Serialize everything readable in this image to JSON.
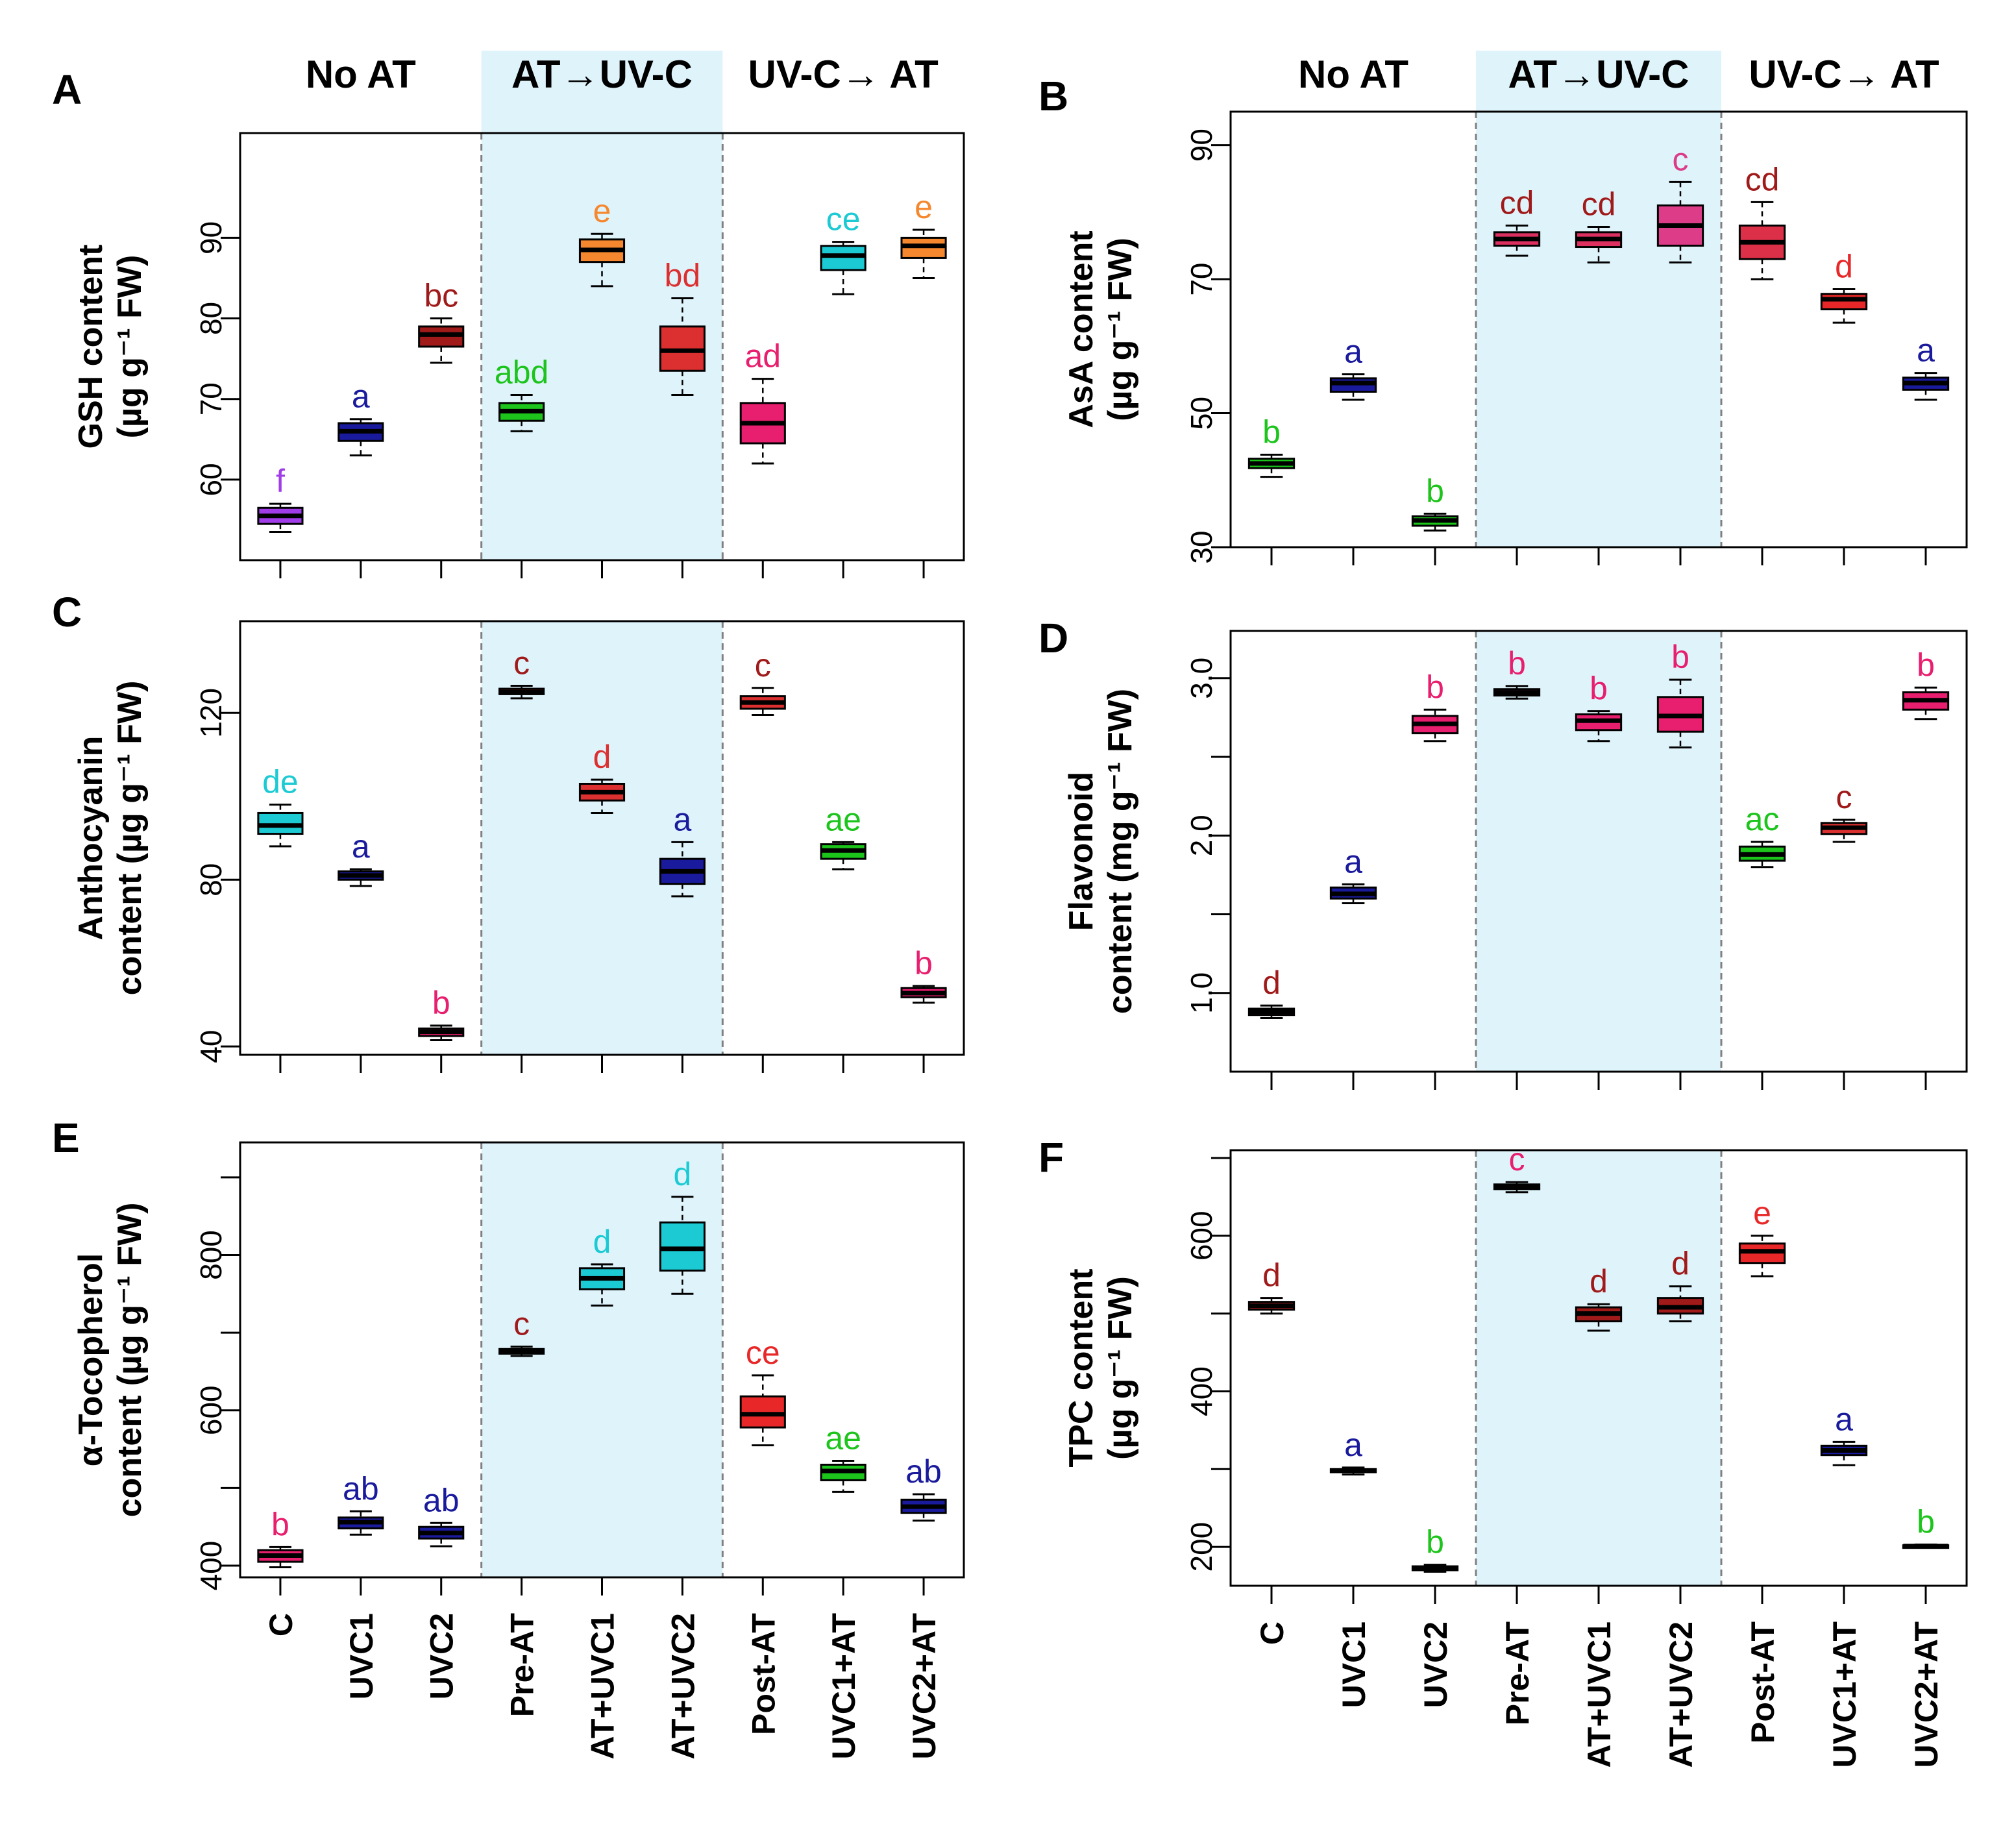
{
  "chart_data": [
    {
      "type": "box",
      "panel": "A",
      "ylabel_line1": "GSH content",
      "ylabel_line2": "(µg g⁻¹ FW)",
      "ylim": [
        50,
        103
      ],
      "yticks": [
        60,
        70,
        80,
        90
      ],
      "groups": [
        "No AT",
        "AT→UV-C",
        "UV-C→ AT"
      ],
      "categories": [
        "C",
        "UVC1",
        "UVC2",
        "Pre-AT",
        "AT+UVC1",
        "AT+UVC2",
        "Post-AT",
        "UVC1+AT",
        "UVC2+AT"
      ],
      "boxes": [
        {
          "min": 53.5,
          "q1": 54.5,
          "med": 55.5,
          "q3": 56.5,
          "max": 57.0,
          "fill": "#a03ce8",
          "letter": "f",
          "letter_color": "#a03ce8"
        },
        {
          "min": 63.0,
          "q1": 64.8,
          "med": 66.0,
          "q3": 67.0,
          "max": 67.5,
          "fill": "#1a1a9c",
          "letter": "a",
          "letter_color": "#1a1a9c"
        },
        {
          "min": 74.5,
          "q1": 76.5,
          "med": 78.0,
          "q3": 79.0,
          "max": 80.0,
          "fill": "#a01a1a",
          "letter": "bc",
          "letter_color": "#a01a1a"
        },
        {
          "min": 66.0,
          "q1": 67.3,
          "med": 68.5,
          "q3": 69.5,
          "max": 70.5,
          "fill": "#1cc41c",
          "letter": "abd",
          "letter_color": "#1cc41c"
        },
        {
          "min": 84.0,
          "q1": 87.0,
          "med": 88.5,
          "q3": 89.8,
          "max": 90.5,
          "fill": "#f5882e",
          "letter": "e",
          "letter_color": "#f5882e"
        },
        {
          "min": 70.5,
          "q1": 73.5,
          "med": 76.0,
          "q3": 79.0,
          "max": 82.5,
          "fill": "#dc3030",
          "letter": "bd",
          "letter_color": "#dc3030"
        },
        {
          "min": 62.0,
          "q1": 64.5,
          "med": 67.0,
          "q3": 69.5,
          "max": 72.5,
          "fill": "#e81e6e",
          "letter": "ad",
          "letter_color": "#e81e6e"
        },
        {
          "min": 83.0,
          "q1": 86.0,
          "med": 87.8,
          "q3": 89.0,
          "max": 89.5,
          "fill": "#1ccad3",
          "letter": "ce",
          "letter_color": "#1ccad3"
        },
        {
          "min": 85.0,
          "q1": 87.5,
          "med": 89.0,
          "q3": 90.0,
          "max": 91.0,
          "fill": "#f5882e",
          "letter": "e",
          "letter_color": "#f5882e"
        }
      ]
    },
    {
      "type": "box",
      "panel": "B",
      "ylabel_line1": "AsA content",
      "ylabel_line2": "(µg g⁻¹ FW)",
      "ylim": [
        30,
        95
      ],
      "yticks": [
        30,
        50,
        70,
        90
      ],
      "groups": [
        "No AT",
        "AT→UV-C",
        "UV-C→ AT"
      ],
      "categories": [
        "C",
        "UVC1",
        "UVC2",
        "Pre-AT",
        "AT+UVC1",
        "AT+UVC2",
        "Post-AT",
        "UVC1+AT",
        "UVC2+AT"
      ],
      "boxes": [
        {
          "min": 40.5,
          "q1": 41.8,
          "med": 42.5,
          "q3": 43.2,
          "max": 43.8,
          "fill": "#1cc41c",
          "letter": "b",
          "letter_color": "#1cc41c"
        },
        {
          "min": 52.0,
          "q1": 53.2,
          "med": 54.5,
          "q3": 55.2,
          "max": 55.8,
          "fill": "#1a1a9c",
          "letter": "a",
          "letter_color": "#1a1a9c"
        },
        {
          "min": 32.5,
          "q1": 33.2,
          "med": 34.0,
          "q3": 34.6,
          "max": 35.0,
          "fill": "#1cc41c",
          "letter": "b",
          "letter_color": "#1cc41c"
        },
        {
          "min": 73.5,
          "q1": 75.0,
          "med": 76.0,
          "q3": 77.0,
          "max": 78.0,
          "fill": "#dc3060",
          "letter": "cd",
          "letter_color": "#a01a1a"
        },
        {
          "min": 72.5,
          "q1": 74.8,
          "med": 76.0,
          "q3": 77.0,
          "max": 77.8,
          "fill": "#dc3060",
          "letter": "cd",
          "letter_color": "#a01a1a"
        },
        {
          "min": 72.5,
          "q1": 75.0,
          "med": 78.0,
          "q3": 81.0,
          "max": 84.5,
          "fill": "#dc3c88",
          "letter": "c",
          "letter_color": "#dc3c88"
        },
        {
          "min": 70.0,
          "q1": 73.0,
          "med": 75.5,
          "q3": 78.0,
          "max": 81.5,
          "fill": "#dc3048",
          "letter": "cd",
          "letter_color": "#a01a1a"
        },
        {
          "min": 63.5,
          "q1": 65.5,
          "med": 67.0,
          "q3": 67.8,
          "max": 68.5,
          "fill": "#e82828",
          "letter": "d",
          "letter_color": "#e82828"
        },
        {
          "min": 52.0,
          "q1": 53.5,
          "med": 54.5,
          "q3": 55.3,
          "max": 56.0,
          "fill": "#1a1a9c",
          "letter": "a",
          "letter_color": "#1a1a9c"
        }
      ]
    },
    {
      "type": "box",
      "panel": "C",
      "ylabel_line1": "Anthocyanin",
      "ylabel_line2": "content (µg g⁻¹ FW)",
      "ylim": [
        38,
        142
      ],
      "yticks": [
        40,
        80,
        120
      ],
      "groups": [
        "No AT",
        "AT→UV-C",
        "UV-C→ AT"
      ],
      "categories": [
        "C",
        "UVC1",
        "UVC2",
        "Pre-AT",
        "AT+UVC1",
        "AT+UVC2",
        "Post-AT",
        "UVC1+AT",
        "UVC2+AT"
      ],
      "boxes": [
        {
          "min": 88.0,
          "q1": 91.0,
          "med": 93.0,
          "q3": 96.0,
          "max": 98.0,
          "fill": "#1ccad3",
          "letter": "de",
          "letter_color": "#1ccad3"
        },
        {
          "min": 78.5,
          "q1": 80.0,
          "med": 81.0,
          "q3": 82.0,
          "max": 82.5,
          "fill": "#1a1a9c",
          "letter": "a",
          "letter_color": "#1a1a9c"
        },
        {
          "min": 41.5,
          "q1": 42.5,
          "med": 43.5,
          "q3": 44.3,
          "max": 45.0,
          "fill": "#e81e6e",
          "letter": "b",
          "letter_color": "#e81e6e"
        },
        {
          "min": 123.5,
          "q1": 124.5,
          "med": 125.0,
          "q3": 125.8,
          "max": 126.5,
          "fill": "#a01a1a",
          "letter": "c",
          "letter_color": "#a01a1a"
        },
        {
          "min": 96.0,
          "q1": 99.0,
          "med": 101.0,
          "q3": 103.0,
          "max": 104.0,
          "fill": "#dc3030",
          "letter": "d",
          "letter_color": "#dc3030"
        },
        {
          "min": 76.0,
          "q1": 79.0,
          "med": 82.0,
          "q3": 85.0,
          "max": 89.0,
          "fill": "#1a1a9c",
          "letter": "a",
          "letter_color": "#1a1a9c"
        },
        {
          "min": 119.5,
          "q1": 121.0,
          "med": 122.5,
          "q3": 124.0,
          "max": 126.0,
          "fill": "#dc3030",
          "letter": "c",
          "letter_color": "#a01a1a"
        },
        {
          "min": 82.5,
          "q1": 85.0,
          "med": 87.0,
          "q3": 88.5,
          "max": 89.0,
          "fill": "#1cc41c",
          "letter": "ae",
          "letter_color": "#1cc41c"
        },
        {
          "min": 50.5,
          "q1": 51.8,
          "med": 52.8,
          "q3": 54.0,
          "max": 54.5,
          "fill": "#e81e6e",
          "letter": "b",
          "letter_color": "#e81e6e"
        }
      ]
    },
    {
      "type": "box",
      "panel": "D",
      "ylabel_line1": "Flavonoid",
      "ylabel_line2": "content (mg g⁻¹ FW)",
      "ylim": [
        0.5,
        3.3
      ],
      "yticks": [
        1.0,
        1.5,
        2.0,
        2.5,
        3.0
      ],
      "ytick_labels": [
        "1.0",
        "",
        "2.0",
        "",
        "3.0"
      ],
      "groups": [
        "No AT",
        "AT→UV-C",
        "UV-C→ AT"
      ],
      "categories": [
        "C",
        "UVC1",
        "UVC2",
        "Pre-AT",
        "AT+UVC1",
        "AT+UVC2",
        "Post-AT",
        "UVC1+AT",
        "UVC2+AT"
      ],
      "boxes": [
        {
          "min": 0.84,
          "q1": 0.86,
          "med": 0.88,
          "q3": 0.9,
          "max": 0.92,
          "fill": "#e82828",
          "letter": "d",
          "letter_color": "#a01a1a"
        },
        {
          "min": 1.57,
          "q1": 1.6,
          "med": 1.63,
          "q3": 1.67,
          "max": 1.69,
          "fill": "#1a1a9c",
          "letter": "a",
          "letter_color": "#1a1a9c"
        },
        {
          "min": 2.6,
          "q1": 2.65,
          "med": 2.71,
          "q3": 2.76,
          "max": 2.8,
          "fill": "#e81e6e",
          "letter": "b",
          "letter_color": "#e81e6e"
        },
        {
          "min": 2.87,
          "q1": 2.89,
          "med": 2.91,
          "q3": 2.93,
          "max": 2.95,
          "fill": "#e81e6e",
          "letter": "b",
          "letter_color": "#e81e6e"
        },
        {
          "min": 2.6,
          "q1": 2.67,
          "med": 2.73,
          "q3": 2.77,
          "max": 2.79,
          "fill": "#e81e6e",
          "letter": "b",
          "letter_color": "#e81e6e"
        },
        {
          "min": 2.56,
          "q1": 2.66,
          "med": 2.76,
          "q3": 2.88,
          "max": 2.99,
          "fill": "#e81e6e",
          "letter": "b",
          "letter_color": "#e81e6e"
        },
        {
          "min": 1.8,
          "q1": 1.84,
          "med": 1.88,
          "q3": 1.93,
          "max": 1.96,
          "fill": "#1cc41c",
          "letter": "ac",
          "letter_color": "#1cc41c"
        },
        {
          "min": 1.96,
          "q1": 2.01,
          "med": 2.05,
          "q3": 2.08,
          "max": 2.1,
          "fill": "#dc3030",
          "letter": "c",
          "letter_color": "#a01a1a"
        },
        {
          "min": 2.74,
          "q1": 2.8,
          "med": 2.86,
          "q3": 2.91,
          "max": 2.94,
          "fill": "#e81e6e",
          "letter": "b",
          "letter_color": "#e81e6e"
        }
      ]
    },
    {
      "type": "box",
      "panel": "E",
      "ylabel_line1": "α-Tocopherol",
      "ylabel_line2": "content (µg g⁻¹ FW)",
      "ylim": [
        385,
        945
      ],
      "yticks": [
        400,
        500,
        600,
        700,
        800,
        900
      ],
      "ytick_labels": [
        "400",
        "",
        "600",
        "",
        "800",
        ""
      ],
      "groups": [
        "No AT",
        "AT→UV-C",
        "UV-C→ AT"
      ],
      "categories": [
        "C",
        "UVC1",
        "UVC2",
        "Pre-AT",
        "AT+UVC1",
        "AT+UVC2",
        "Post-AT",
        "UVC1+AT",
        "UVC2+AT"
      ],
      "boxes": [
        {
          "min": 398,
          "q1": 405,
          "med": 413,
          "q3": 420,
          "max": 424,
          "fill": "#e81e6e",
          "letter": "b",
          "letter_color": "#e81e6e"
        },
        {
          "min": 440,
          "q1": 448,
          "med": 456,
          "q3": 462,
          "max": 470,
          "fill": "#1a1a9c",
          "letter": "ab",
          "letter_color": "#1a1a9c"
        },
        {
          "min": 425,
          "q1": 435,
          "med": 442,
          "q3": 450,
          "max": 455,
          "fill": "#1a1a9c",
          "letter": "ab",
          "letter_color": "#1a1a9c"
        },
        {
          "min": 670,
          "q1": 673,
          "med": 676,
          "q3": 679,
          "max": 682,
          "fill": "#1a1a1a",
          "letter": "c",
          "letter_color": "#a01a1a"
        },
        {
          "min": 735,
          "q1": 756,
          "med": 770,
          "q3": 783,
          "max": 788,
          "fill": "#1ccad3",
          "letter": "d",
          "letter_color": "#1ccad3"
        },
        {
          "min": 750,
          "q1": 780,
          "med": 808,
          "q3": 842,
          "max": 875,
          "fill": "#1ccad3",
          "letter": "d",
          "letter_color": "#1ccad3"
        },
        {
          "min": 555,
          "q1": 578,
          "med": 595,
          "q3": 618,
          "max": 645,
          "fill": "#e82828",
          "letter": "ce",
          "letter_color": "#e82828"
        },
        {
          "min": 495,
          "q1": 510,
          "med": 522,
          "q3": 530,
          "max": 535,
          "fill": "#1cc41c",
          "letter": "ae",
          "letter_color": "#1cc41c"
        },
        {
          "min": 458,
          "q1": 468,
          "med": 476,
          "q3": 485,
          "max": 492,
          "fill": "#1a1a9c",
          "letter": "ab",
          "letter_color": "#1a1a9c"
        }
      ]
    },
    {
      "type": "box",
      "panel": "F",
      "ylabel_line1": "TPC content",
      "ylabel_line2": "(µg g⁻¹ FW)",
      "ylim": [
        150,
        710
      ],
      "yticks": [
        200,
        300,
        400,
        500,
        600,
        700
      ],
      "ytick_labels": [
        "200",
        "",
        "400",
        "",
        "600",
        ""
      ],
      "groups": [
        "No AT",
        "AT→UV-C",
        "UV-C→ AT"
      ],
      "categories": [
        "C",
        "UVC1",
        "UVC2",
        "Pre-AT",
        "AT+UVC1",
        "AT+UVC2",
        "Post-AT",
        "UVC1+AT",
        "UVC2+AT"
      ],
      "boxes": [
        {
          "min": 500,
          "q1": 505,
          "med": 510,
          "q3": 515,
          "max": 520,
          "fill": "#a01a1a",
          "letter": "d",
          "letter_color": "#a01a1a"
        },
        {
          "min": 293,
          "q1": 296,
          "med": 298,
          "q3": 300,
          "max": 302,
          "fill": "#1a1a1a",
          "letter": "a",
          "letter_color": "#1a1a9c"
        },
        {
          "min": 168,
          "q1": 170,
          "med": 172,
          "q3": 175,
          "max": 177,
          "fill": "#1a1a1a",
          "letter": "b",
          "letter_color": "#1cc41c"
        },
        {
          "min": 656,
          "q1": 660,
          "med": 663,
          "q3": 666,
          "max": 669,
          "fill": "#1a1a1a",
          "letter": "c",
          "letter_color": "#e81e6e"
        },
        {
          "min": 478,
          "q1": 490,
          "med": 500,
          "q3": 508,
          "max": 512,
          "fill": "#a01a1a",
          "letter": "d",
          "letter_color": "#a01a1a"
        },
        {
          "min": 490,
          "q1": 500,
          "med": 508,
          "q3": 520,
          "max": 535,
          "fill": "#a01a1a",
          "letter": "d",
          "letter_color": "#a01a1a"
        },
        {
          "min": 548,
          "q1": 565,
          "med": 580,
          "q3": 590,
          "max": 600,
          "fill": "#e82828",
          "letter": "e",
          "letter_color": "#e82828"
        },
        {
          "min": 305,
          "q1": 318,
          "med": 324,
          "q3": 330,
          "max": 335,
          "fill": "#1a1a9c",
          "letter": "a",
          "letter_color": "#1a1a9c"
        },
        {
          "min": 199,
          "q1": 200,
          "med": 201,
          "q3": 202,
          "max": 203,
          "fill": "#1a1a1a",
          "letter": "b",
          "letter_color": "#1cc41c"
        }
      ]
    }
  ],
  "colors": {
    "shade": "#dff3fb",
    "divider": "#808080",
    "axis": "#000000"
  }
}
